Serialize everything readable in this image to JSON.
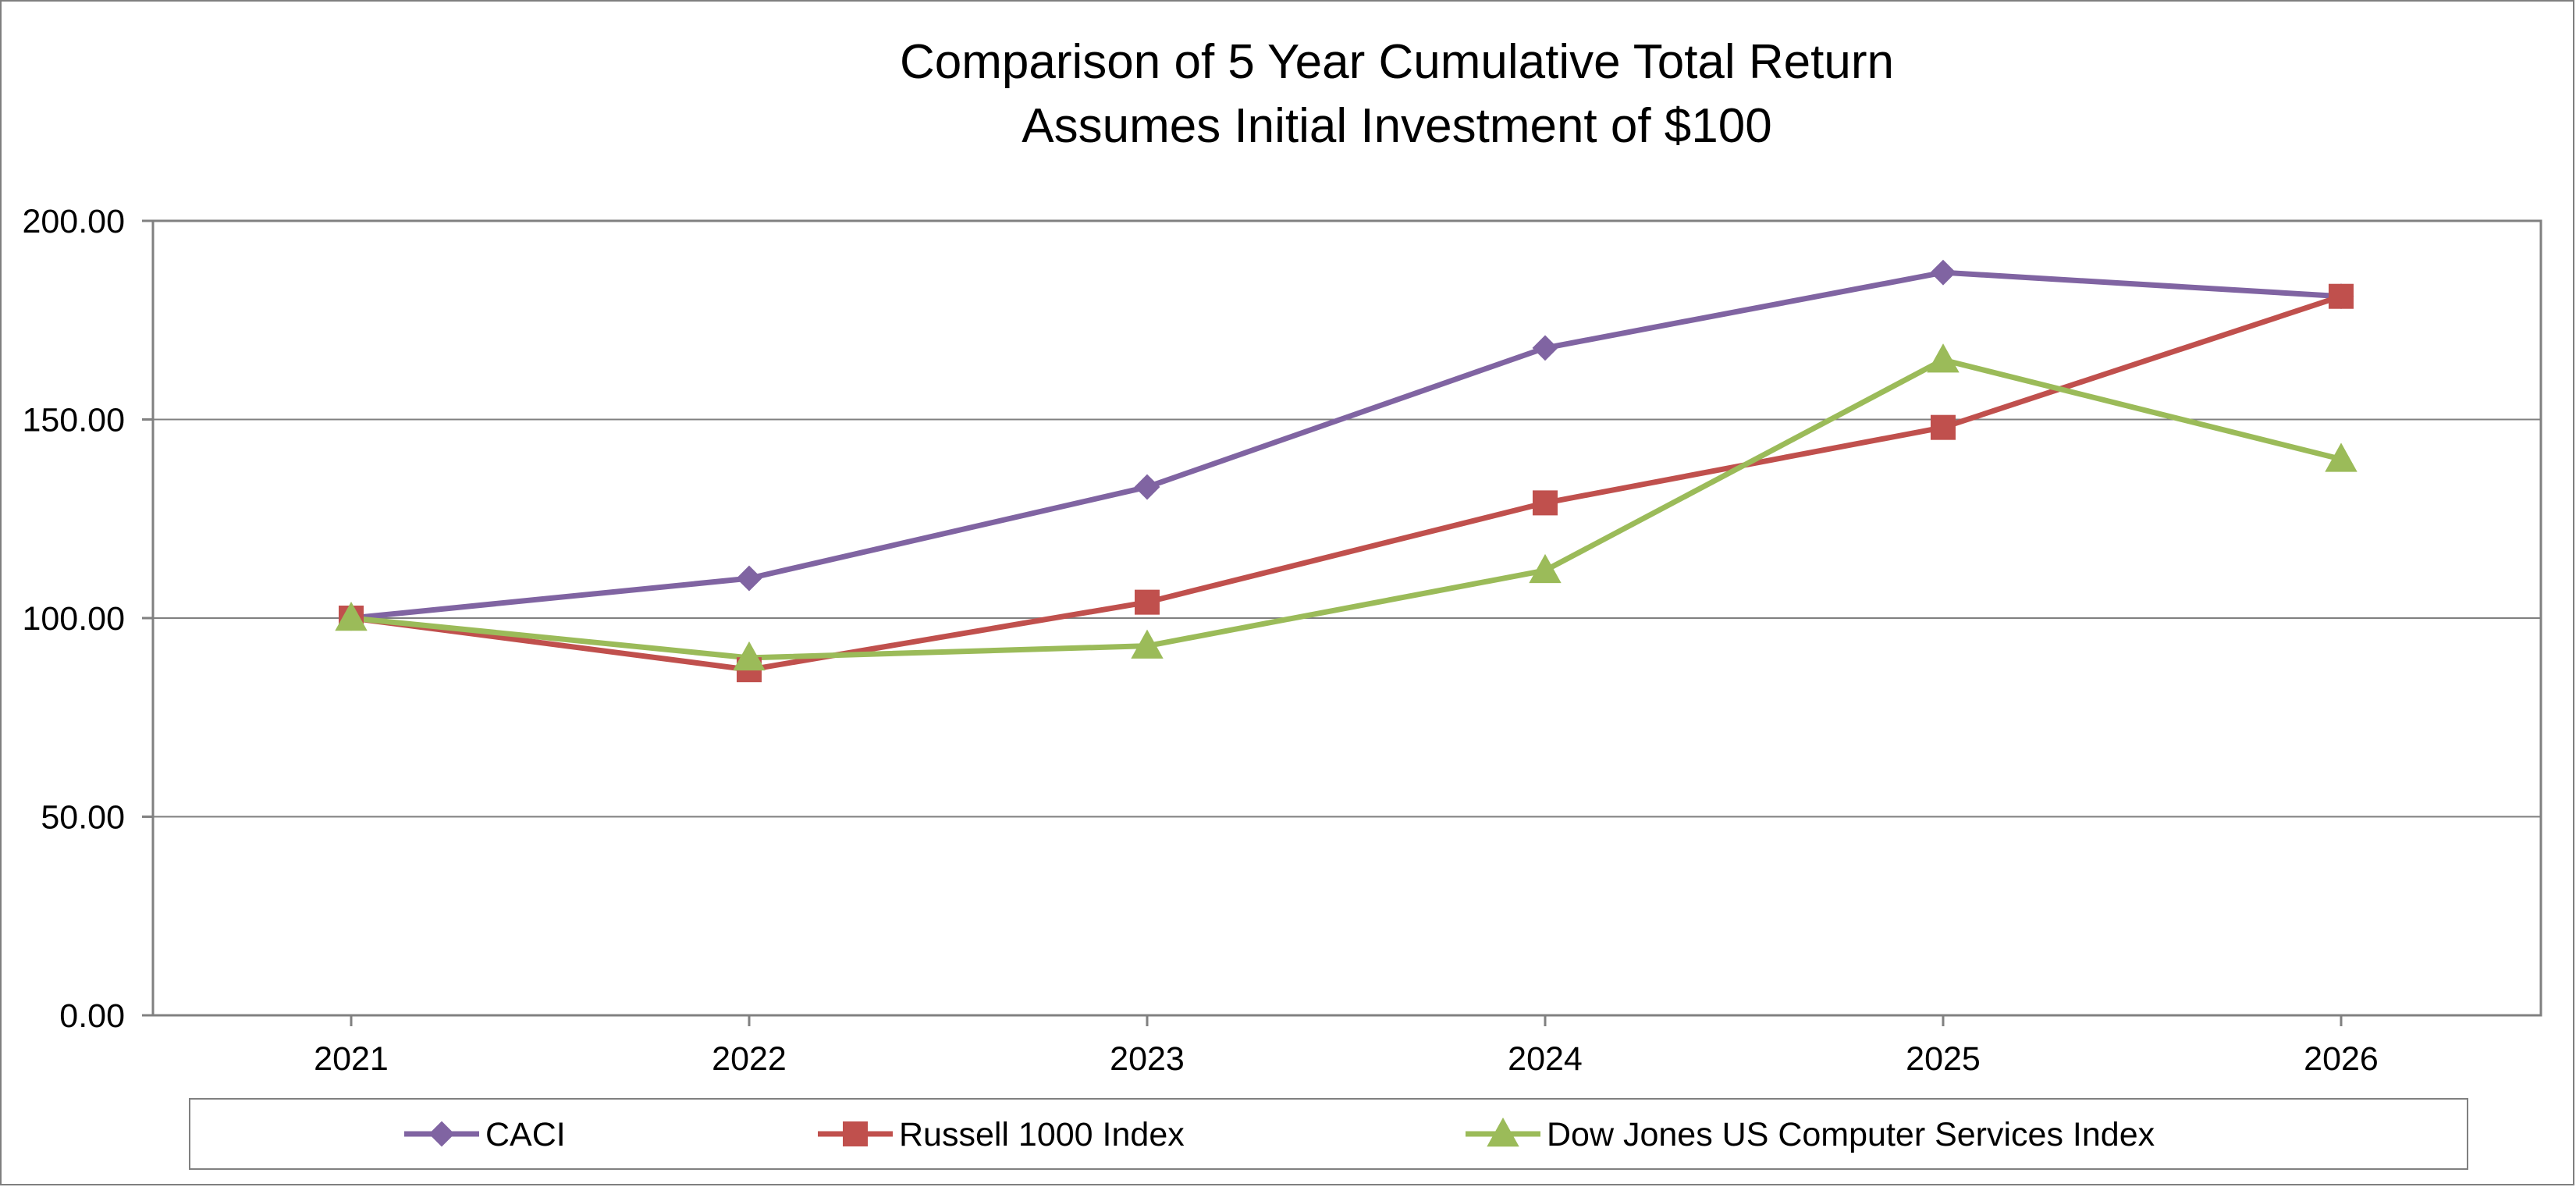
{
  "chart_data": {
    "type": "line",
    "title": "Comparison of 5 Year Cumulative Total Return",
    "subtitle": "Assumes Initial Investment of $100",
    "xlabel": "",
    "ylabel": "",
    "categories": [
      "2021",
      "2022",
      "2023",
      "2024",
      "2025",
      "2026"
    ],
    "ylim": [
      0,
      200
    ],
    "yticks": [
      0,
      50,
      100,
      150,
      200
    ],
    "ytick_labels": [
      "0.00",
      "50.00",
      "100.00",
      "150.00",
      "200.00"
    ],
    "grid": true,
    "legend_position": "bottom",
    "series": [
      {
        "name": "CACI",
        "values": [
          100,
          110,
          133,
          168,
          187,
          181
        ],
        "color": "#8064a2",
        "marker": "diamond"
      },
      {
        "name": "Russell 1000 Index",
        "values": [
          100,
          87,
          104,
          129,
          148,
          181
        ],
        "color": "#c0504d",
        "marker": "square"
      },
      {
        "name": "Dow Jones US Computer Services Index",
        "values": [
          100,
          90,
          93,
          112,
          165,
          140
        ],
        "color": "#9bbb59",
        "marker": "triangle"
      }
    ]
  }
}
